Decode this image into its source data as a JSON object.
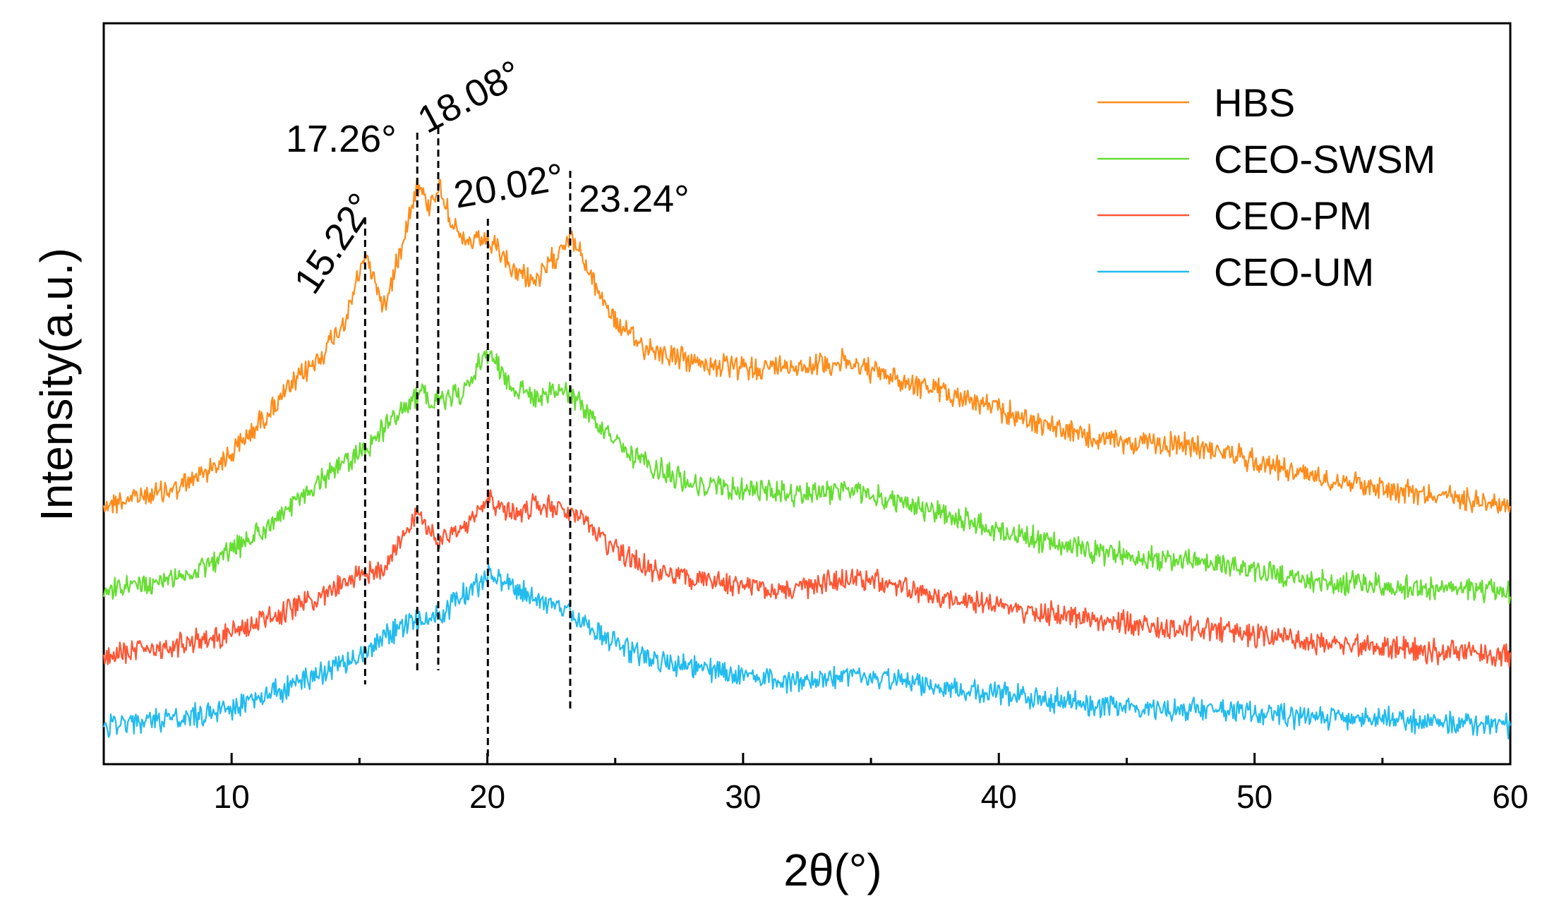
{
  "chart_data": {
    "type": "line",
    "xlabel": "2θ(°)",
    "ylabel": "Intensity(a.u.)",
    "xlim": [
      5,
      60
    ],
    "x_ticks": [
      "10",
      "20",
      "30",
      "40",
      "50",
      "60"
    ],
    "y_ticks_shown": false,
    "legend_position": "top-right",
    "series": [
      {
        "name": "HBS",
        "color": "#ff8c1a",
        "points": [
          [
            5,
            0.0
          ],
          [
            8,
            0.05
          ],
          [
            10,
            0.15
          ],
          [
            12,
            0.32
          ],
          [
            13.5,
            0.44
          ],
          [
            14.5,
            0.55
          ],
          [
            15.22,
            0.74
          ],
          [
            16,
            0.58
          ],
          [
            17.26,
            0.95
          ],
          [
            17.7,
            0.88
          ],
          [
            18.08,
            0.94
          ],
          [
            19,
            0.77
          ],
          [
            20.02,
            0.78
          ],
          [
            21,
            0.69
          ],
          [
            22,
            0.66
          ],
          [
            23.24,
            0.8
          ],
          [
            24,
            0.68
          ],
          [
            25,
            0.54
          ],
          [
            26,
            0.47
          ],
          [
            28,
            0.42
          ],
          [
            30,
            0.4
          ],
          [
            32,
            0.41
          ],
          [
            34,
            0.42
          ],
          [
            36,
            0.37
          ],
          [
            38,
            0.33
          ],
          [
            40,
            0.28
          ],
          [
            42,
            0.23
          ],
          [
            44,
            0.19
          ],
          [
            46,
            0.18
          ],
          [
            48,
            0.17
          ],
          [
            50,
            0.13
          ],
          [
            52,
            0.09
          ],
          [
            55,
            0.05
          ],
          [
            60,
            0.0
          ]
        ]
      },
      {
        "name": "CEO-SWSM",
        "color": "#66dd33",
        "points": [
          [
            5,
            0.0
          ],
          [
            8,
            0.05
          ],
          [
            10,
            0.13
          ],
          [
            12,
            0.25
          ],
          [
            14,
            0.4
          ],
          [
            15.22,
            0.46
          ],
          [
            16.5,
            0.58
          ],
          [
            17.26,
            0.64
          ],
          [
            18.08,
            0.62
          ],
          [
            19,
            0.64
          ],
          [
            20.02,
            0.78
          ],
          [
            21,
            0.66
          ],
          [
            22,
            0.63
          ],
          [
            23.24,
            0.65
          ],
          [
            24,
            0.57
          ],
          [
            25,
            0.48
          ],
          [
            26,
            0.42
          ],
          [
            28,
            0.35
          ],
          [
            30,
            0.33
          ],
          [
            32,
            0.32
          ],
          [
            34,
            0.33
          ],
          [
            36,
            0.29
          ],
          [
            38,
            0.25
          ],
          [
            40,
            0.2
          ],
          [
            42,
            0.16
          ],
          [
            44,
            0.13
          ],
          [
            46,
            0.11
          ],
          [
            48,
            0.1
          ],
          [
            50,
            0.07
          ],
          [
            52,
            0.04
          ],
          [
            55,
            0.02
          ],
          [
            60,
            0.0
          ]
        ]
      },
      {
        "name": "CEO-PM",
        "color": "#ff5533",
        "points": [
          [
            5,
            0.0
          ],
          [
            8,
            0.04
          ],
          [
            10,
            0.08
          ],
          [
            12,
            0.14
          ],
          [
            14,
            0.22
          ],
          [
            15.22,
            0.27
          ],
          [
            16,
            0.3
          ],
          [
            17.26,
            0.47
          ],
          [
            18.08,
            0.37
          ],
          [
            19,
            0.42
          ],
          [
            20.02,
            0.52
          ],
          [
            21,
            0.47
          ],
          [
            22,
            0.5
          ],
          [
            23.24,
            0.47
          ],
          [
            24,
            0.42
          ],
          [
            25,
            0.35
          ],
          [
            26,
            0.3
          ],
          [
            28,
            0.25
          ],
          [
            30,
            0.23
          ],
          [
            32,
            0.22
          ],
          [
            34,
            0.26
          ],
          [
            36,
            0.23
          ],
          [
            38,
            0.19
          ],
          [
            40,
            0.17
          ],
          [
            42,
            0.14
          ],
          [
            44,
            0.12
          ],
          [
            46,
            0.1
          ],
          [
            48,
            0.09
          ],
          [
            50,
            0.07
          ],
          [
            52,
            0.05
          ],
          [
            55,
            0.03
          ],
          [
            60,
            0.0
          ]
        ]
      },
      {
        "name": "CEO-UM",
        "color": "#22bbee",
        "points": [
          [
            5,
            0.0
          ],
          [
            8,
            0.03
          ],
          [
            10,
            0.07
          ],
          [
            12,
            0.14
          ],
          [
            14,
            0.22
          ],
          [
            15.22,
            0.28
          ],
          [
            16,
            0.34
          ],
          [
            17.26,
            0.4
          ],
          [
            18.08,
            0.41
          ],
          [
            19,
            0.48
          ],
          [
            20.02,
            0.56
          ],
          [
            21,
            0.52
          ],
          [
            22,
            0.48
          ],
          [
            23.24,
            0.43
          ],
          [
            24,
            0.37
          ],
          [
            25,
            0.31
          ],
          [
            26,
            0.27
          ],
          [
            28,
            0.22
          ],
          [
            30,
            0.19
          ],
          [
            32,
            0.17
          ],
          [
            34,
            0.19
          ],
          [
            36,
            0.17
          ],
          [
            38,
            0.14
          ],
          [
            40,
            0.12
          ],
          [
            42,
            0.1
          ],
          [
            44,
            0.08
          ],
          [
            46,
            0.07
          ],
          [
            48,
            0.06
          ],
          [
            50,
            0.05
          ],
          [
            52,
            0.04
          ],
          [
            55,
            0.03
          ],
          [
            60,
            0.0
          ]
        ]
      }
    ],
    "peak_markers": [
      {
        "x": 15.22,
        "label": "15.22°"
      },
      {
        "x": 17.26,
        "label": "17.26°"
      },
      {
        "x": 18.08,
        "label": "18.08°"
      },
      {
        "x": 20.02,
        "label": "20.02°"
      },
      {
        "x": 23.24,
        "label": "23.24°"
      }
    ]
  }
}
